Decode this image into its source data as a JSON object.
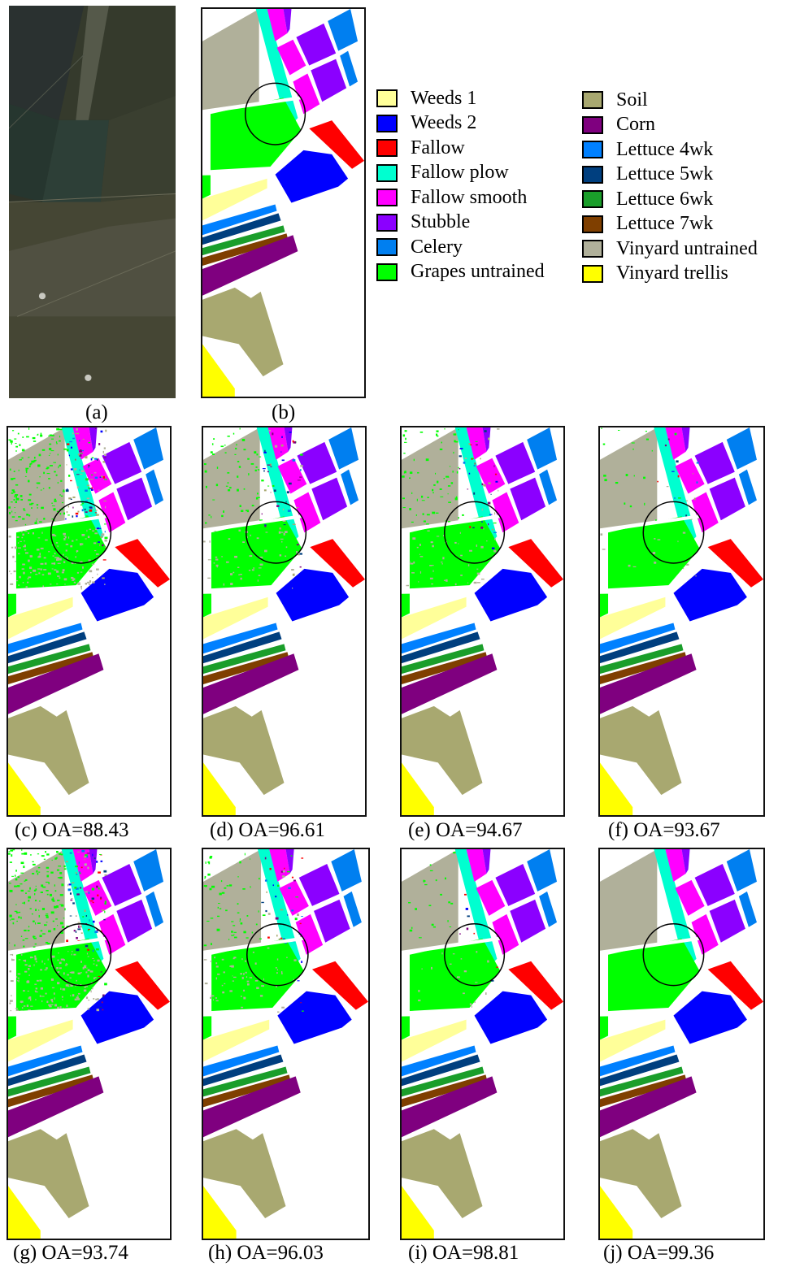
{
  "colors": {
    "weeds1": "#ffff99",
    "weeds2": "#0000ff",
    "fallow": "#ff0000",
    "fallow_plow": "#00ffd0",
    "fallow_smooth": "#ff00ff",
    "stubble": "#8b00ff",
    "celery": "#007ff0",
    "grapes_untrained": "#00ff00",
    "soil": "#a8a870",
    "corn": "#7f007f",
    "lettuce_4wk": "#0080ff",
    "lettuce_5wk": "#003f7f",
    "lettuce_6wk": "#1a9e2a",
    "lettuce_7wk": "#7f3f00",
    "vinyard_untrained": "#b0b09a",
    "vinyard_trellis": "#ffff00"
  },
  "legend": {
    "left": [
      {
        "label": "Weeds 1",
        "color": "#ffff99"
      },
      {
        "label": "Weeds 2",
        "color": "#0000ff"
      },
      {
        "label": "Fallow",
        "color": "#ff0000"
      },
      {
        "label": "Fallow plow",
        "color": "#00ffd0"
      },
      {
        "label": "Fallow smooth",
        "color": "#ff00ff"
      },
      {
        "label": "Stubble",
        "color": "#8b00ff"
      },
      {
        "label": "Celery",
        "color": "#007ff0"
      },
      {
        "label": "Grapes untrained",
        "color": "#00ff00"
      }
    ],
    "right": [
      {
        "label": "Soil",
        "color": "#a8a870"
      },
      {
        "label": "Corn",
        "color": "#7f007f"
      },
      {
        "label": "Lettuce 4wk",
        "color": "#0080ff"
      },
      {
        "label": "Lettuce 5wk",
        "color": "#003f7f"
      },
      {
        "label": "Lettuce 6wk",
        "color": "#1a9e2a"
      },
      {
        "label": "Lettuce 7wk",
        "color": "#7f3f00"
      },
      {
        "label": "Vinyard untrained",
        "color": "#b0b09a"
      },
      {
        "label": "Vinyard trellis",
        "color": "#ffff00"
      }
    ]
  },
  "captions": {
    "a": "(a)",
    "b": "(b)",
    "c": "(c)  OA=88.43",
    "d": "(d)  OA=96.61",
    "e": "(e)  OA=94.67",
    "f": "(f)  OA=93.67",
    "g": "(g) OA=93.74",
    "h": "(h) OA=96.03",
    "i": "(i)  OA=98.81",
    "j": "(j) OA=99.36"
  }
}
